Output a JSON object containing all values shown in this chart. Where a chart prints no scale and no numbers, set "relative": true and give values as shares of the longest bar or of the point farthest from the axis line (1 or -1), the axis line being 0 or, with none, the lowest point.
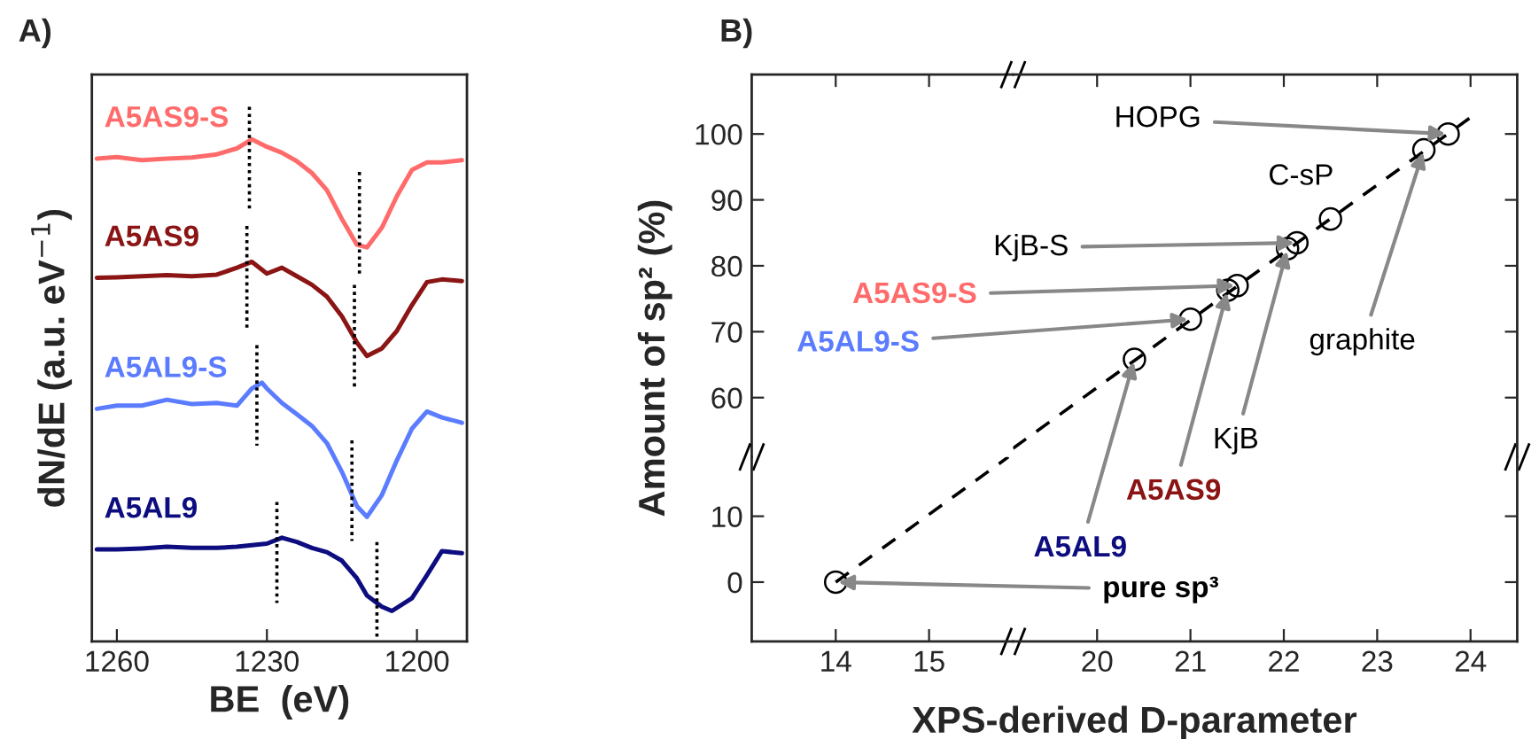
{
  "chart_data": [
    {
      "type": "line",
      "title": "A)",
      "xlabel": "BE  (eV)",
      "ylabel": "dN/dE (a.u. eV$^{−1}$)",
      "relative": true,
      "xlim": [
        1265,
        1190
      ],
      "xticks": [
        1260,
        1230,
        1200
      ],
      "grid": false,
      "series": [
        {
          "name": "A5AS9-S",
          "color": "#ff6b6b",
          "x": [
            1264,
            1260,
            1255,
            1250,
            1245,
            1240,
            1236,
            1233,
            1230,
            1227,
            1224,
            1221,
            1218,
            1215,
            1212,
            1210,
            1207,
            1204,
            1201,
            1198,
            1195,
            1191
          ],
          "values": [
            0.903,
            0.906,
            0.9,
            0.903,
            0.905,
            0.911,
            0.922,
            0.939,
            0.925,
            0.914,
            0.898,
            0.876,
            0.844,
            0.79,
            0.742,
            0.737,
            0.774,
            0.833,
            0.882,
            0.896,
            0.896,
            0.9
          ]
        },
        {
          "name": "A5AS9",
          "color": "#8b1414",
          "x": [
            1264,
            1260,
            1255,
            1250,
            1245,
            1240,
            1236,
            1233,
            1230,
            1227,
            1224,
            1221,
            1218,
            1215,
            1212,
            1210,
            1207,
            1204,
            1201,
            1198,
            1195,
            1191
          ],
          "values": [
            0.68,
            0.681,
            0.683,
            0.685,
            0.683,
            0.686,
            0.699,
            0.71,
            0.688,
            0.699,
            0.683,
            0.667,
            0.645,
            0.608,
            0.559,
            0.534,
            0.548,
            0.581,
            0.629,
            0.672,
            0.677,
            0.674
          ]
        },
        {
          "name": "A5AL9-S",
          "color": "#5b7cff",
          "x": [
            1264,
            1260,
            1255,
            1250,
            1245,
            1240,
            1236,
            1233,
            1231,
            1230,
            1227,
            1224,
            1221,
            1218,
            1215,
            1212,
            1210,
            1207,
            1204,
            1201,
            1198,
            1195,
            1191
          ],
          "values": [
            0.435,
            0.441,
            0.441,
            0.452,
            0.444,
            0.446,
            0.441,
            0.473,
            0.484,
            0.473,
            0.446,
            0.425,
            0.403,
            0.371,
            0.317,
            0.253,
            0.233,
            0.274,
            0.339,
            0.398,
            0.43,
            0.419,
            0.409
          ]
        },
        {
          "name": "A5AL9",
          "color": "#0d0d80",
          "x": [
            1264,
            1260,
            1255,
            1250,
            1245,
            1240,
            1236,
            1233,
            1230,
            1227,
            1224,
            1221,
            1218,
            1215,
            1212,
            1210,
            1207,
            1205,
            1201,
            1198,
            1195,
            1191
          ],
          "values": [
            0.172,
            0.172,
            0.174,
            0.177,
            0.175,
            0.175,
            0.177,
            0.18,
            0.183,
            0.194,
            0.186,
            0.175,
            0.167,
            0.151,
            0.118,
            0.086,
            0.065,
            0.057,
            0.081,
            0.124,
            0.169,
            0.165
          ]
        },
        {
          "type": "line",
          "line_style": "dotted",
          "color": "#000000",
          "x": [
            1233.5,
            1233.5
          ],
          "values": [
            1.0,
            0.806
          ]
        },
        {
          "type": "line",
          "line_style": "dotted",
          "color": "#000000",
          "x": [
            1211.5,
            1211.5
          ],
          "values": [
            0.878,
            0.688
          ]
        },
        {
          "type": "line",
          "line_style": "dotted",
          "color": "#000000",
          "x": [
            1234,
            1234
          ],
          "values": [
            0.777,
            0.586
          ]
        },
        {
          "type": "line",
          "line_style": "dotted",
          "color": "#000000",
          "x": [
            1212.5,
            1212.5
          ],
          "values": [
            0.667,
            0.473
          ]
        },
        {
          "type": "line",
          "line_style": "dotted",
          "color": "#000000",
          "x": [
            1232,
            1232
          ],
          "values": [
            0.554,
            0.366
          ]
        },
        {
          "type": "line",
          "line_style": "dotted",
          "color": "#000000",
          "x": [
            1213,
            1213
          ],
          "values": [
            0.376,
            0.188
          ]
        },
        {
          "type": "line",
          "line_style": "dotted",
          "color": "#000000",
          "x": [
            1228,
            1228
          ],
          "values": [
            0.261,
            0.072
          ]
        },
        {
          "type": "line",
          "line_style": "dotted",
          "color": "#000000",
          "x": [
            1208,
            1208
          ],
          "values": [
            0.186,
            0.0
          ]
        }
      ]
    },
    {
      "type": "scatter",
      "title": "B)",
      "ylabel": "Amount of sp² (%)",
      "xlim": [
        13.1,
        15.9
      ],
      "xticks": [
        14,
        15
      ],
      "ylim": [
        51,
        109
      ],
      "yticks": [
        60,
        70,
        80,
        90,
        100
      ],
      "tick_labels": "y",
      "grid": false
    },
    {
      "type": "scatter",
      "xlim": [
        19.1,
        24.5
      ],
      "xticks": [
        20,
        21,
        22,
        23,
        24
      ],
      "ylim": [
        51,
        109
      ],
      "yticks": [
        60,
        70,
        80,
        90,
        100
      ],
      "tick_labels": false,
      "grid": false,
      "series": [
        {
          "type": "line",
          "line_style": "dashed",
          "marker": "none",
          "color": "#000000",
          "x": [
            19.1,
            24
          ],
          "values": [
            52.3,
            102.5
          ]
        },
        {
          "type": "scatter",
          "marker": "circle",
          "color": "#000000",
          "x": [
            20.4,
            21.0,
            21.4,
            21.5,
            22.04,
            22.14,
            22.5,
            23.5,
            23.76
          ],
          "values": [
            65.8,
            71.9,
            76.3,
            77.0,
            82.6,
            83.5,
            87.1,
            97.6,
            100
          ]
        }
      ],
      "annotations": [
        {
          "text": "HOPG",
          "x": 23.76,
          "y": 100
        },
        {
          "text": "graphite",
          "x": 23.5,
          "y": 97.6
        },
        {
          "text": "C-sP",
          "x": 22.5,
          "y": 87.1
        },
        {
          "text": "KjB-S",
          "x": 22.14,
          "y": 83.5
        },
        {
          "text": "KjB",
          "x": 22.04,
          "y": 82.6
        },
        {
          "text": "A5AS9-S",
          "x": 21.5,
          "y": 77.0
        },
        {
          "text": "A5AL9-S",
          "x": 21.0,
          "y": 71.9
        },
        {
          "text": "A5AS9",
          "x": 21.4,
          "y": 76.3
        },
        {
          "text": "A5AL9",
          "x": 20.4,
          "y": 65.8
        }
      ]
    },
    {
      "type": "scatter",
      "xlim": [
        13.1,
        15.9
      ],
      "xticks": [
        14,
        15
      ],
      "ylim": [
        -9,
        19
      ],
      "yticks": [
        0,
        10
      ],
      "grid": false,
      "series": [
        {
          "type": "line",
          "line_style": "dashed",
          "marker": "none",
          "color": "#000000",
          "x": [
            14,
            15.85
          ],
          "values": [
            0,
            19
          ]
        },
        {
          "type": "scatter",
          "marker": "circle",
          "color": "#000000",
          "x": [
            14
          ],
          "values": [
            0
          ]
        }
      ],
      "annotations": [
        {
          "text": "pure sp³",
          "x": 14,
          "y": 0
        }
      ]
    },
    {
      "type": "scatter",
      "xlabel": "XPS-derived D-parameter",
      "xlim": [
        19.1,
        24.5
      ],
      "xticks": [
        20,
        21,
        22,
        23,
        24
      ],
      "ylim": [
        -9,
        19
      ],
      "yticks": [
        0,
        10
      ],
      "tick_labels": "x",
      "grid": false
    }
  ]
}
